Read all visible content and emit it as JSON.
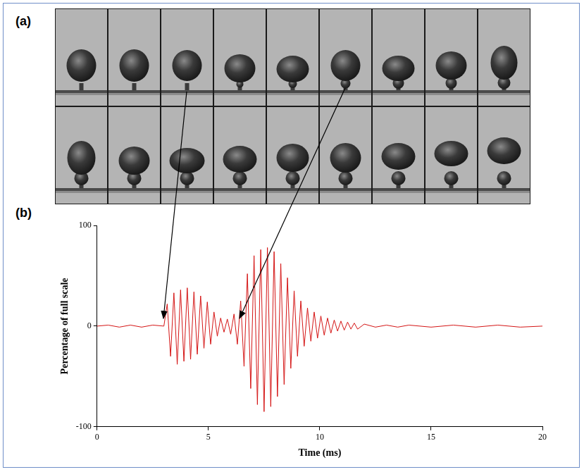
{
  "figure": {
    "panel_a_label": "(a)",
    "panel_b_label": "(b)"
  },
  "chart_data": {
    "type": "line",
    "x_label": "Time (ms)",
    "y_label": "Percentage of full scale",
    "x": [
      0,
      0.5,
      1,
      1.5,
      2,
      2.5,
      3.0,
      3.15,
      3.3,
      3.45,
      3.6,
      3.75,
      3.9,
      4.05,
      4.2,
      4.35,
      4.5,
      4.65,
      4.8,
      4.95,
      5.1,
      5.25,
      5.4,
      5.55,
      5.7,
      5.85,
      6.0,
      6.15,
      6.3,
      6.45,
      6.6,
      6.75,
      6.9,
      7.05,
      7.2,
      7.35,
      7.5,
      7.65,
      7.8,
      7.95,
      8.1,
      8.25,
      8.4,
      8.55,
      8.7,
      8.85,
      9.0,
      9.15,
      9.3,
      9.45,
      9.6,
      9.75,
      9.9,
      10.05,
      10.2,
      10.35,
      10.5,
      10.65,
      10.8,
      10.95,
      11.1,
      11.25,
      11.4,
      11.55,
      11.7,
      12,
      12.5,
      13,
      13.5,
      14,
      15,
      16,
      17,
      18,
      19,
      20
    ],
    "values": [
      0,
      1,
      -1,
      1,
      -1,
      1,
      0,
      22,
      -30,
      33,
      -38,
      36,
      -35,
      38,
      -33,
      34,
      -28,
      30,
      -22,
      24,
      -18,
      14,
      -10,
      8,
      -6,
      7,
      -8,
      12,
      -18,
      25,
      -40,
      52,
      -62,
      70,
      -78,
      76,
      -85,
      78,
      -80,
      74,
      -70,
      62,
      -58,
      48,
      -42,
      35,
      -30,
      25,
      -20,
      18,
      -15,
      14,
      -12,
      10,
      -9,
      8,
      -7,
      6,
      -5,
      5,
      -4,
      4,
      -3,
      3,
      -3,
      2,
      -1,
      1,
      -1,
      1,
      -1,
      1,
      -1,
      1,
      -1,
      0
    ],
    "color": "#d41414",
    "xlim": [
      0,
      20
    ],
    "xticks": [
      0,
      5,
      10,
      15,
      20
    ],
    "ylim": [
      -100,
      100
    ],
    "yticks": [
      -100,
      0,
      100
    ],
    "grid": false
  }
}
